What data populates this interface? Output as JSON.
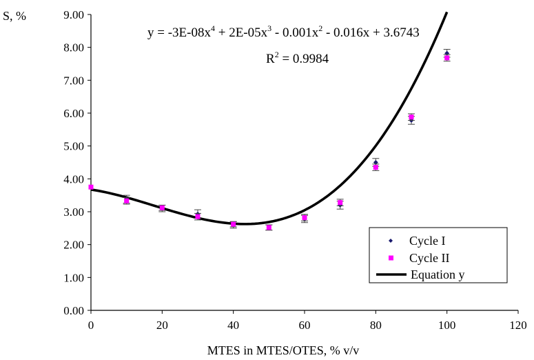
{
  "chart_data": {
    "type": "scatter",
    "xlabel": "MTES in MTES/OTES, % v/v",
    "ylabel": "S, %",
    "xlim": [
      0,
      120
    ],
    "ylim": [
      0,
      9
    ],
    "x_ticks": [
      "0",
      "20",
      "40",
      "60",
      "80",
      "100",
      "120"
    ],
    "y_ticks": [
      "0.00",
      "1.00",
      "2.00",
      "3.00",
      "4.00",
      "5.00",
      "6.00",
      "7.00",
      "8.00",
      "9.00"
    ],
    "grid": false,
    "legend_position": "bottom-right",
    "annotations": {
      "equation_prefix": "y = -3E-08x",
      "equation_parts": [
        "4",
        " + 2E-05x",
        "3",
        " - 0.001x",
        "2",
        " - 0.016x + 3.6743"
      ],
      "r2_prefix": "R",
      "r2_sup": "2",
      "r2_value": " = 0.9984"
    },
    "series": [
      {
        "name": "Cycle I",
        "marker": "diamond",
        "color": "#1a1a6e",
        "x": [
          10,
          20,
          30,
          40,
          50,
          60,
          70,
          80,
          90,
          100
        ],
        "y": [
          3.38,
          3.1,
          2.93,
          2.6,
          2.52,
          2.78,
          3.2,
          4.5,
          5.78,
          7.82
        ],
        "error": [
          0.12,
          0.1,
          0.13,
          0.1,
          0.08,
          0.11,
          0.12,
          0.12,
          0.12,
          0.12
        ]
      },
      {
        "name": "Cycle II",
        "marker": "square",
        "color": "#ff00ff",
        "x": [
          0,
          10,
          20,
          30,
          40,
          50,
          60,
          70,
          80,
          90,
          100
        ],
        "y": [
          3.75,
          3.33,
          3.12,
          2.85,
          2.62,
          2.52,
          2.82,
          3.28,
          4.35,
          5.88,
          7.68
        ],
        "error": [
          0,
          0.1,
          0.08,
          0.1,
          0.08,
          0.08,
          0.1,
          0.1,
          0.1,
          0.1,
          0.1
        ]
      },
      {
        "name": "Equation y",
        "type": "line",
        "color": "#000000",
        "coefficients": [
          -3e-08,
          2e-05,
          -0.001,
          -0.016,
          3.6743
        ],
        "x_range": [
          0,
          100
        ]
      }
    ]
  }
}
